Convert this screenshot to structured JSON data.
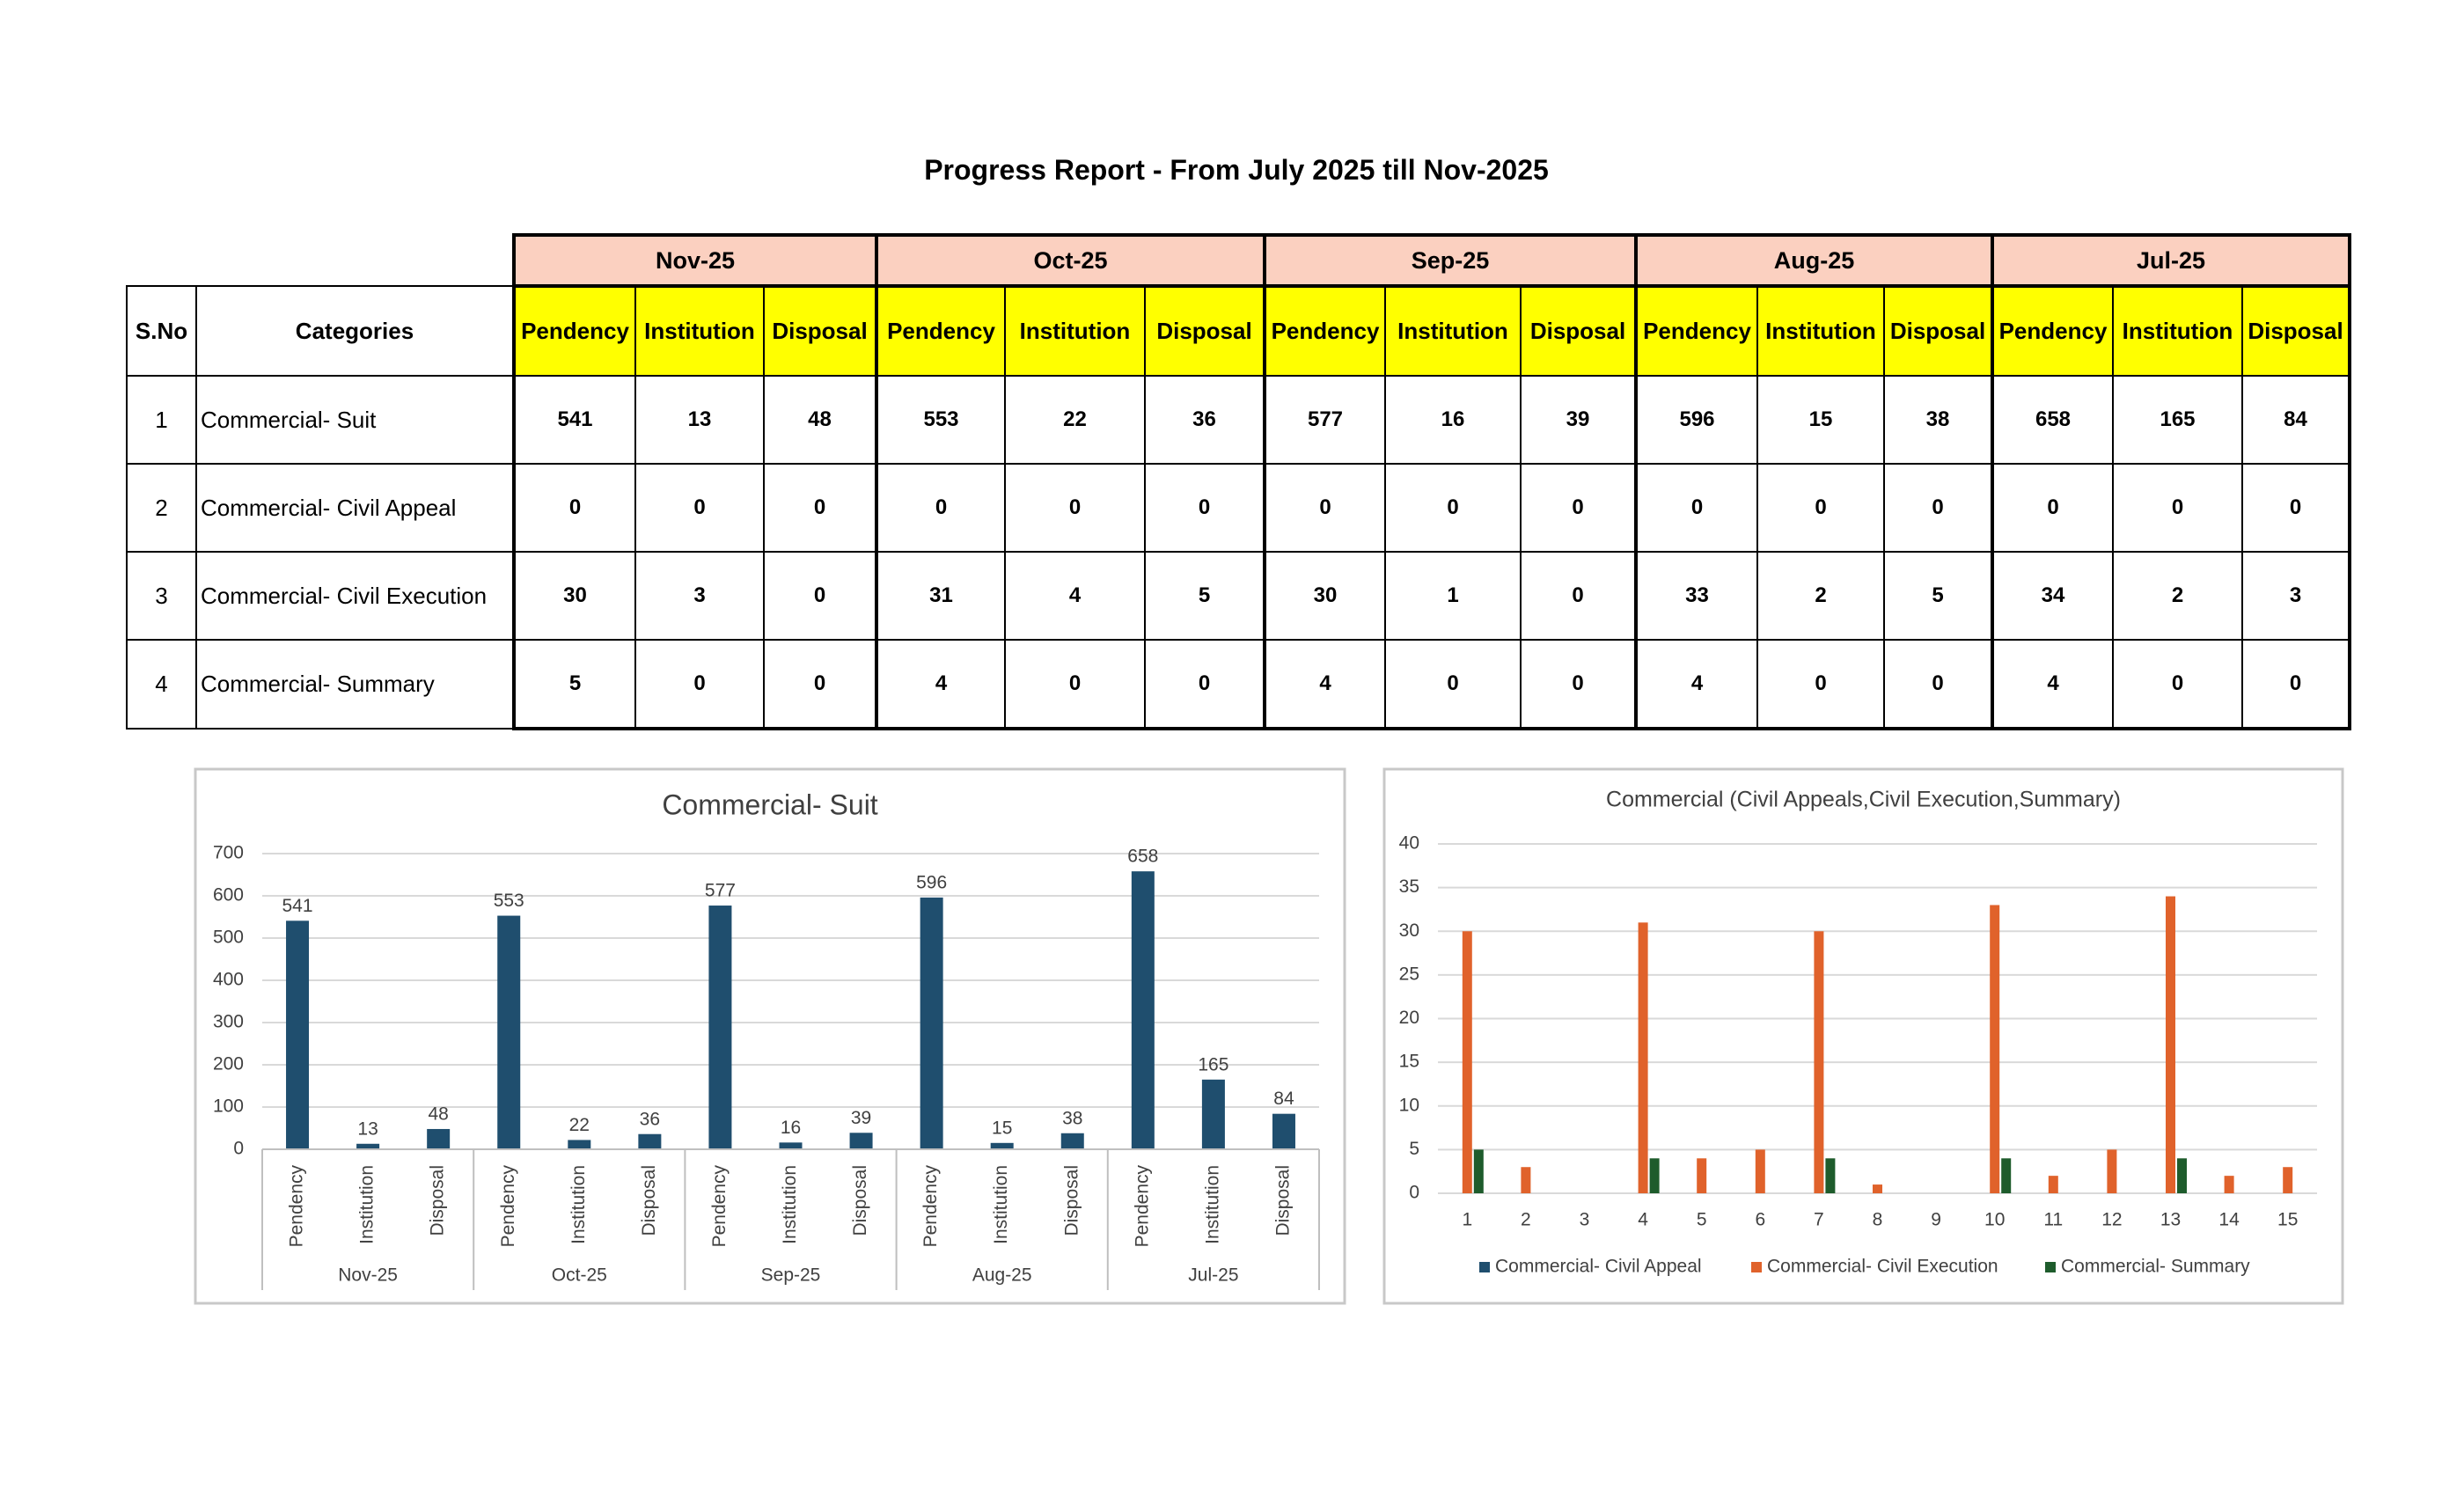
{
  "title": "Progress Report - From July 2025 till Nov-2025",
  "table": {
    "headers": [
      "S.No",
      "Categories"
    ],
    "months": [
      "Nov-25",
      "Oct-25",
      "Sep-25",
      "Aug-25",
      "Jul-25"
    ],
    "columns": [
      "Pendency",
      "Institution",
      "Disposal"
    ],
    "rows": [
      {
        "sno": 1,
        "category": "Commercial- Suit",
        "values": [
          541,
          13,
          48,
          553,
          22,
          36,
          577,
          16,
          39,
          596,
          15,
          38,
          658,
          165,
          84
        ]
      },
      {
        "sno": 2,
        "category": "Commercial- Civil Appeal",
        "values": [
          0,
          0,
          0,
          0,
          0,
          0,
          0,
          0,
          0,
          0,
          0,
          0,
          0,
          0,
          0
        ]
      },
      {
        "sno": 3,
        "category": "Commercial- Civil Execution",
        "values": [
          30,
          3,
          0,
          31,
          4,
          5,
          30,
          1,
          0,
          33,
          2,
          5,
          34,
          2,
          3
        ]
      },
      {
        "sno": 4,
        "category": "Commercial- Summary",
        "values": [
          5,
          0,
          0,
          4,
          0,
          0,
          4,
          0,
          0,
          4,
          0,
          0,
          4,
          0,
          0
        ]
      }
    ]
  },
  "chart_data": [
    {
      "type": "bar",
      "title": "Commercial- Suit",
      "categories": [
        "Pendency",
        "Institution",
        "Disposal",
        "Pendency",
        "Institution",
        "Disposal",
        "Pendency",
        "Institution",
        "Disposal",
        "Pendency",
        "Institution",
        "Disposal",
        "Pendency",
        "Institution",
        "Disposal"
      ],
      "groups": [
        "Nov-25",
        "Oct-25",
        "Sep-25",
        "Aug-25",
        "Jul-25"
      ],
      "values": [
        541,
        13,
        48,
        553,
        22,
        36,
        577,
        16,
        39,
        596,
        15,
        38,
        658,
        165,
        84
      ],
      "color": "#1f4e6e",
      "ylim": [
        0,
        700
      ],
      "yticks": [
        0,
        100,
        200,
        300,
        400,
        500,
        600,
        700
      ],
      "grid": true,
      "data_labels": true
    },
    {
      "type": "bar",
      "title": "Commercial (Civil Appeals,Civil Execution,Summary)",
      "categories": [
        1,
        2,
        3,
        4,
        5,
        6,
        7,
        8,
        9,
        10,
        11,
        12,
        13,
        14,
        15
      ],
      "series": [
        {
          "name": "Commercial- Civil Appeal",
          "color": "#1f4e6e",
          "values": [
            0,
            0,
            0,
            0,
            0,
            0,
            0,
            0,
            0,
            0,
            0,
            0,
            0,
            0,
            0
          ]
        },
        {
          "name": "Commercial- Civil Execution",
          "color": "#e0622b",
          "values": [
            30,
            3,
            0,
            31,
            4,
            5,
            30,
            1,
            0,
            33,
            2,
            5,
            34,
            2,
            3
          ]
        },
        {
          "name": "Commercial- Summary",
          "color": "#1e5c2c",
          "values": [
            5,
            0,
            0,
            4,
            0,
            0,
            4,
            0,
            0,
            4,
            0,
            0,
            4,
            0,
            0
          ]
        }
      ],
      "ylim": [
        0,
        40
      ],
      "yticks": [
        0,
        5,
        10,
        15,
        20,
        25,
        30,
        35,
        40
      ],
      "grid": true,
      "legend": "bottom"
    }
  ]
}
